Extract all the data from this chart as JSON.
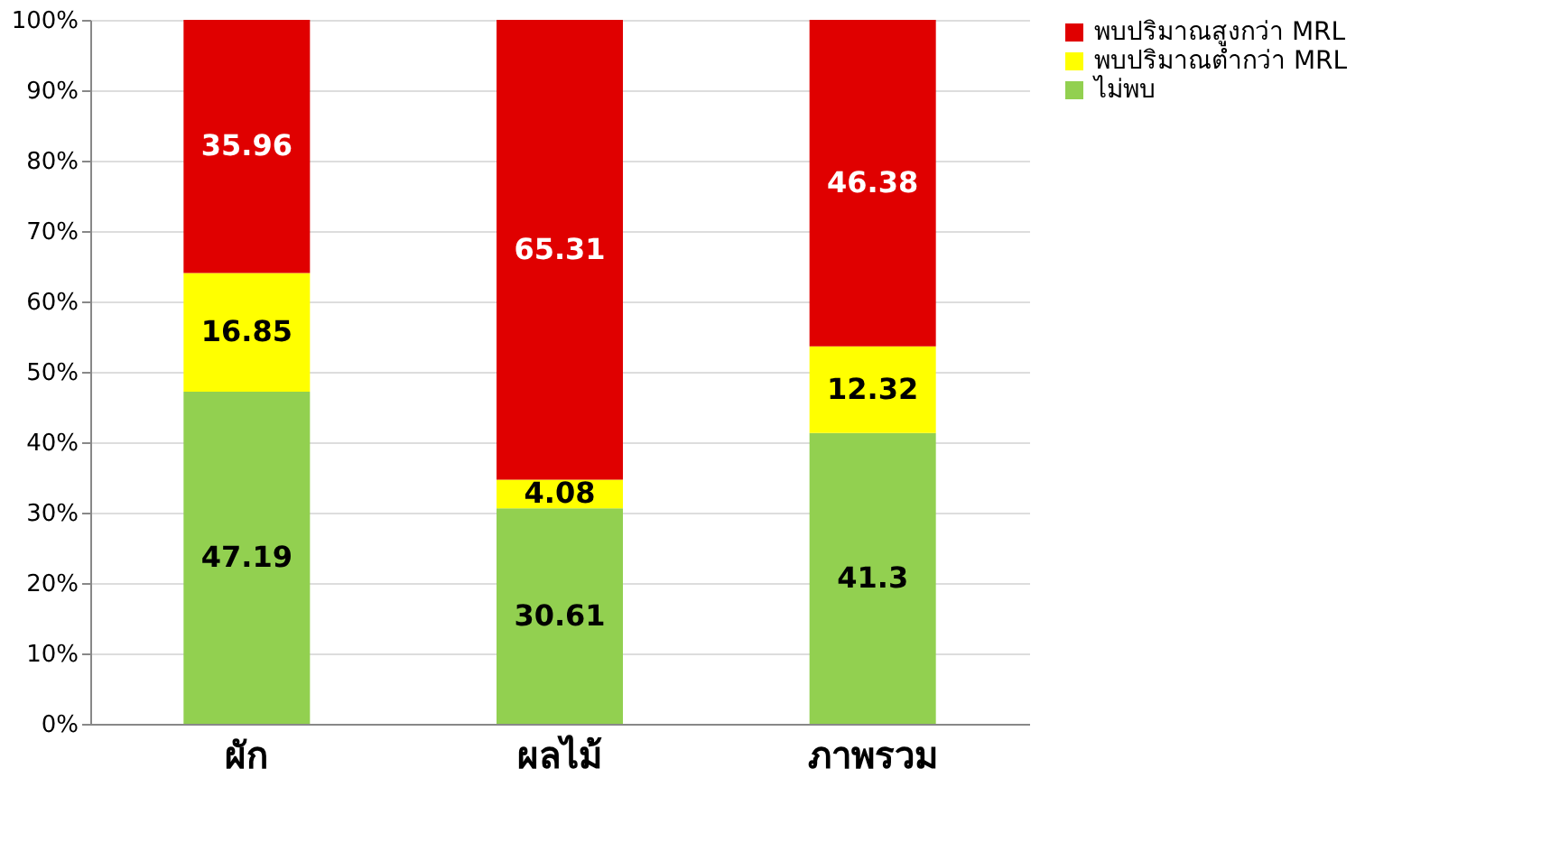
{
  "chart_data": {
    "type": "bar",
    "stacked": true,
    "categories": [
      "ผัก",
      "ผลไม้",
      "ภาพรวม"
    ],
    "series": [
      {
        "name": "ไม่พบ",
        "color": "#92d050",
        "values": [
          47.19,
          30.61,
          41.3
        ]
      },
      {
        "name": "พบปริมาณต่ำกว่า MRL",
        "color": "#ffff00",
        "values": [
          16.85,
          4.08,
          12.32
        ]
      },
      {
        "name": "พบปริมาณสูงกว่า MRL",
        "color": "#e00000",
        "values": [
          35.96,
          65.31,
          46.38
        ]
      }
    ],
    "ylim": [
      0,
      100
    ],
    "yticks": [
      {
        "value": 0,
        "label": "0%"
      },
      {
        "value": 10,
        "label": "10%"
      },
      {
        "value": 20,
        "label": "20%"
      },
      {
        "value": 30,
        "label": "30%"
      },
      {
        "value": 40,
        "label": "40%"
      },
      {
        "value": 50,
        "label": "50%"
      },
      {
        "value": 60,
        "label": "60%"
      },
      {
        "value": 70,
        "label": "70%"
      },
      {
        "value": 80,
        "label": "80%"
      },
      {
        "value": 90,
        "label": "90%"
      },
      {
        "value": 100,
        "label": "100%"
      }
    ],
    "grid": "y",
    "legend": "right",
    "data_labels": true
  }
}
